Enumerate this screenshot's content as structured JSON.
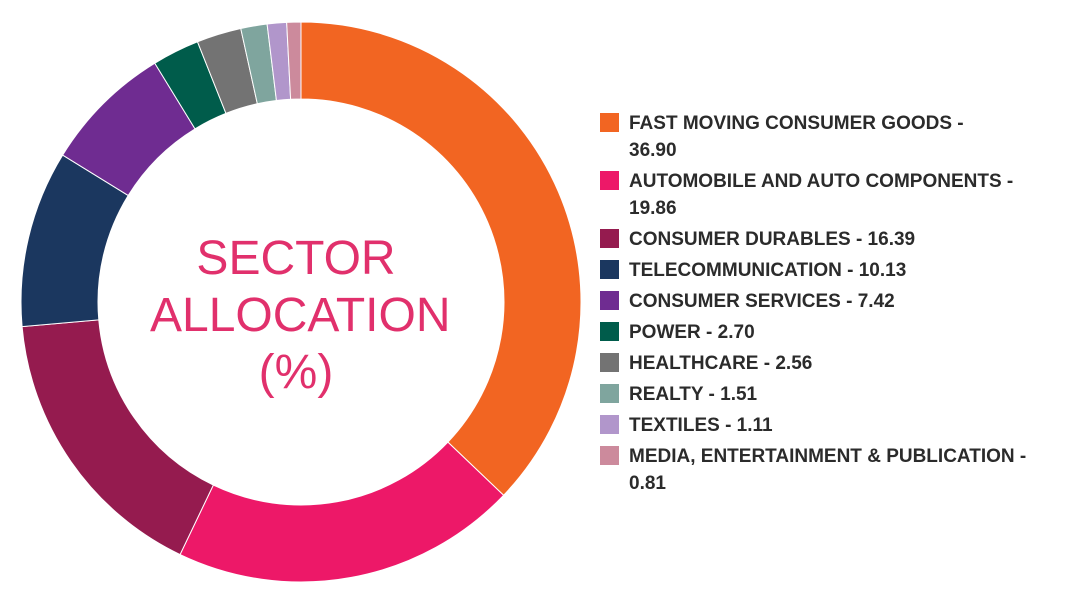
{
  "chart_data": {
    "type": "pie",
    "title_lines": [
      "SECTOR",
      "ALLOCATION",
      "(%)"
    ],
    "slices": [
      {
        "label": "FAST MOVING CONSUMER GOODS",
        "value": 36.9,
        "color": "#f26522"
      },
      {
        "label": "AUTOMOBILE AND AUTO COMPONENTS",
        "value": 19.86,
        "color": "#ed1868"
      },
      {
        "label": "CONSUMER DURABLES",
        "value": 16.39,
        "color": "#951b4f"
      },
      {
        "label": "TELECOMMUNICATION",
        "value": 10.13,
        "color": "#1b375f"
      },
      {
        "label": "CONSUMER SERVICES",
        "value": 7.42,
        "color": "#6f2c91"
      },
      {
        "label": "POWER",
        "value": 2.7,
        "color": "#005c4b"
      },
      {
        "label": "HEALTHCARE",
        "value": 2.56,
        "color": "#737373"
      },
      {
        "label": "REALTY",
        "value": 1.51,
        "color": "#7fa59e"
      },
      {
        "label": "TEXTILES",
        "value": 1.11,
        "color": "#b196cb"
      },
      {
        "label": "MEDIA, ENTERTAINMENT & PUBLICATION",
        "value": 0.81,
        "color": "#cc8a9c"
      }
    ],
    "legend_lines": [
      [
        "FAST MOVING CONSUMER GOODS -",
        "36.90"
      ],
      [
        "AUTOMOBILE AND AUTO COMPONENTS -",
        "19.86"
      ],
      [
        "CONSUMER DURABLES - 16.39"
      ],
      [
        "TELECOMMUNICATION - 10.13"
      ],
      [
        "CONSUMER SERVICES - 7.42"
      ],
      [
        "POWER - 2.70"
      ],
      [
        "HEALTHCARE - 2.56"
      ],
      [
        "REALTY - 1.51"
      ],
      [
        "TEXTILES - 1.11"
      ],
      [
        "MEDIA, ENTERTAINMENT & PUBLICATION -",
        "0.81"
      ]
    ],
    "legend_placement": "right",
    "donut": true
  }
}
